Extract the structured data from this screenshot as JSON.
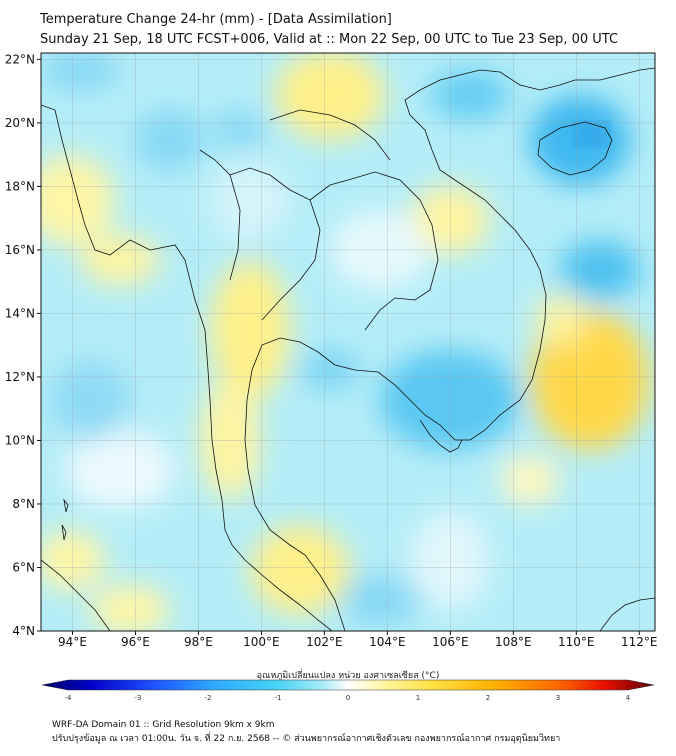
{
  "header": {
    "title": "Temperature Change 24-hr (mm) - [Data Assimilation]",
    "subtitle": "Sunday 21 Sep, 18 UTC FCST+006, Valid at :: Mon 22 Sep, 00 UTC to Tue 23 Sep, 00 UTC"
  },
  "map": {
    "lon_range": [
      93,
      112.5
    ],
    "lat_range": [
      4,
      22.2
    ],
    "lat_ticks": [
      {
        "value": 22,
        "label": "22°N"
      },
      {
        "value": 20,
        "label": "20°N"
      },
      {
        "value": 18,
        "label": "18°N"
      },
      {
        "value": 16,
        "label": "16°N"
      },
      {
        "value": 14,
        "label": "14°N"
      },
      {
        "value": 12,
        "label": "12°N"
      },
      {
        "value": 10,
        "label": "10°N"
      },
      {
        "value": 8,
        "label": "8°N"
      },
      {
        "value": 6,
        "label": "6°N"
      },
      {
        "value": 4,
        "label": "4°N"
      }
    ],
    "lon_ticks": [
      {
        "value": 94,
        "label": "94°E"
      },
      {
        "value": 96,
        "label": "96°E"
      },
      {
        "value": 98,
        "label": "98°E"
      },
      {
        "value": 100,
        "label": "100°E"
      },
      {
        "value": 102,
        "label": "102°E"
      },
      {
        "value": 104,
        "label": "104°E"
      },
      {
        "value": 106,
        "label": "106°E"
      },
      {
        "value": 108,
        "label": "108°E"
      },
      {
        "value": 110,
        "label": "110°E"
      },
      {
        "value": 112,
        "label": "112°E"
      }
    ]
  },
  "colorbar": {
    "title": "อุณหภูมิเปลี่ยนแปลง หน่วย องศาเซลเซียส (°C)",
    "ticks": [
      "-4",
      "-3",
      "-2",
      "-1",
      "0",
      "1",
      "2",
      "3",
      "4"
    ],
    "colors": [
      "#000066",
      "#0000c8",
      "#1e50ff",
      "#2ea8ff",
      "#45d2f5",
      "#a8ecf8",
      "#ffffff",
      "#fff6a0",
      "#ffe040",
      "#ffb000",
      "#ff6a00",
      "#e81000",
      "#a00000",
      "#5a0000"
    ]
  },
  "footer": {
    "line1": "WRF-DA Domain 01 :: Grid Resolution 9km x 9km",
    "line2": "ปรับปรุงข้อมูล ณ เวลา 01:00น. วัน จ. ที่ 22 ก.ย. 2568 -- © ส่วนพยากรณ์อากาศเชิงตัวเลข กองพยากรณ์อากาศ กรมอุตุนิยมวิทยา"
  }
}
